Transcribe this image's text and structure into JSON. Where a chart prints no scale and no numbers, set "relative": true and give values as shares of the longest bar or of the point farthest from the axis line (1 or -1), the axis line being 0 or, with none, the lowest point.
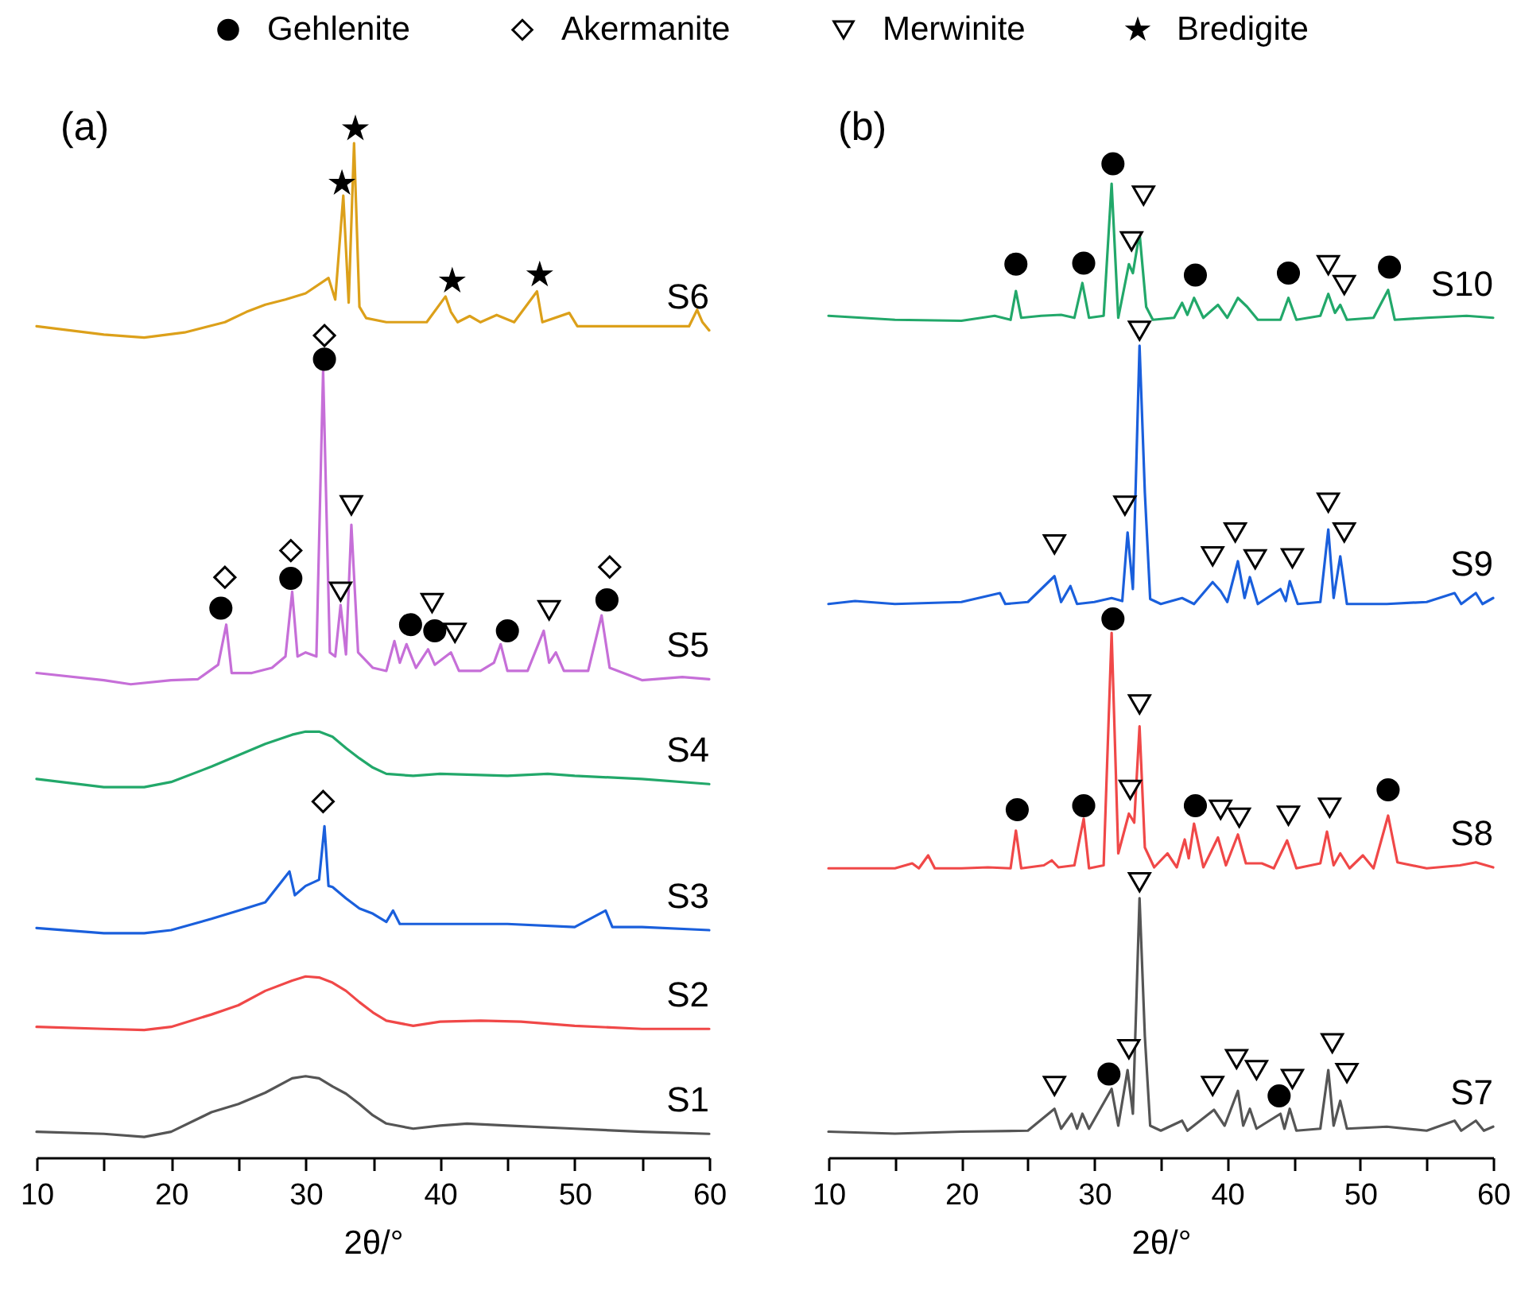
{
  "chart_data": [
    {
      "type": "line",
      "title": "(a)",
      "xlabel": "2θ/°",
      "xlim": [
        10,
        60
      ],
      "xticks": [
        10,
        {
          "value": 15,
          "label": null
        },
        20,
        {
          "value": 25,
          "label": null
        },
        30,
        {
          "value": 35,
          "label": null
        },
        40,
        {
          "value": 45,
          "label": null
        },
        50,
        {
          "value": 55,
          "label": null
        },
        60
      ],
      "relative": true,
      "legend": "top",
      "series": [
        {
          "name": "S1",
          "color": "#555555",
          "x": [
            10,
            15,
            18,
            20,
            23,
            25,
            27,
            29,
            30,
            31,
            32,
            33,
            34,
            35,
            36,
            38,
            40,
            42,
            45,
            50,
            55,
            60
          ],
          "values": [
            0.025,
            0.023,
            0.02,
            0.025,
            0.044,
            0.052,
            0.063,
            0.077,
            0.079,
            0.077,
            0.069,
            0.062,
            0.052,
            0.041,
            0.033,
            0.028,
            0.031,
            0.033,
            0.031,
            0.028,
            0.025,
            0.023
          ]
        },
        {
          "name": "S2",
          "color": "#f04848",
          "x": [
            10,
            15,
            18,
            20,
            23,
            25,
            27,
            29,
            30,
            31,
            32,
            33,
            34,
            35,
            36,
            38,
            40,
            43,
            46,
            50,
            55,
            60
          ],
          "values": [
            0.127,
            0.125,
            0.124,
            0.127,
            0.139,
            0.148,
            0.162,
            0.172,
            0.176,
            0.175,
            0.17,
            0.162,
            0.151,
            0.141,
            0.133,
            0.128,
            0.132,
            0.133,
            0.132,
            0.128,
            0.125,
            0.125
          ]
        },
        {
          "name": "S3",
          "color": "#1a5fdc",
          "x": [
            10,
            15,
            18,
            20,
            23,
            25,
            27,
            28.8,
            29.2,
            30,
            31,
            31.4,
            31.7,
            32,
            33,
            34,
            35,
            36,
            36.5,
            37,
            40,
            45,
            50,
            52.3,
            52.8,
            55,
            60
          ],
          "values": [
            0.223,
            0.218,
            0.218,
            0.221,
            0.232,
            0.24,
            0.248,
            0.278,
            0.255,
            0.264,
            0.27,
            0.322,
            0.264,
            0.263,
            0.252,
            0.242,
            0.237,
            0.229,
            0.24,
            0.227,
            0.227,
            0.227,
            0.224,
            0.24,
            0.224,
            0.224,
            0.221
          ]
        },
        {
          "name": "S4",
          "color": "#22a86a",
          "x": [
            10,
            15,
            18,
            20,
            23,
            25,
            27,
            29,
            30,
            31,
            32,
            33,
            34,
            35,
            36,
            38,
            40,
            45,
            48,
            50,
            55,
            60
          ],
          "values": [
            0.368,
            0.36,
            0.36,
            0.365,
            0.38,
            0.391,
            0.402,
            0.411,
            0.414,
            0.414,
            0.409,
            0.398,
            0.388,
            0.379,
            0.373,
            0.371,
            0.373,
            0.371,
            0.373,
            0.371,
            0.368,
            0.363
          ]
        },
        {
          "name": "S5",
          "color": "#c66fd8",
          "x": [
            10,
            15,
            17,
            20,
            22,
            23.5,
            24.1,
            24.5,
            26,
            27.5,
            28.5,
            29,
            29.4,
            30,
            30.8,
            31.3,
            31.8,
            32.2,
            32.6,
            33,
            33.4,
            33.9,
            35,
            36,
            36.6,
            37,
            37.5,
            38.2,
            39.1,
            39.6,
            40.8,
            41.4,
            43,
            44,
            44.5,
            45,
            46.5,
            47.7,
            48.1,
            48.6,
            49.2,
            51,
            52,
            52.6,
            55,
            58,
            60
          ],
          "values": [
            0.471,
            0.464,
            0.46,
            0.464,
            0.465,
            0.479,
            0.518,
            0.471,
            0.471,
            0.476,
            0.487,
            0.55,
            0.487,
            0.491,
            0.487,
            0.765,
            0.491,
            0.487,
            0.537,
            0.489,
            0.615,
            0.491,
            0.476,
            0.473,
            0.502,
            0.481,
            0.499,
            0.476,
            0.494,
            0.479,
            0.491,
            0.473,
            0.473,
            0.481,
            0.499,
            0.473,
            0.473,
            0.512,
            0.481,
            0.491,
            0.473,
            0.473,
            0.527,
            0.476,
            0.464,
            0.467,
            0.465
          ]
        },
        {
          "name": "S6",
          "color": "#dca01a",
          "x": [
            10,
            15,
            18,
            21,
            24,
            25.6,
            27,
            28.5,
            30,
            31.7,
            32.2,
            32.8,
            33.2,
            33.6,
            34,
            34.5,
            36,
            39,
            40.4,
            40.8,
            41.3,
            42.2,
            43,
            44.2,
            45.5,
            47.2,
            47.6,
            49.6,
            50.2,
            55,
            58.5,
            59.1,
            59.5,
            60
          ],
          "values": [
            0.808,
            0.8,
            0.797,
            0.802,
            0.812,
            0.822,
            0.829,
            0.834,
            0.84,
            0.855,
            0.834,
            0.935,
            0.831,
            0.986,
            0.827,
            0.816,
            0.812,
            0.812,
            0.837,
            0.822,
            0.812,
            0.818,
            0.812,
            0.819,
            0.812,
            0.842,
            0.812,
            0.821,
            0.808,
            0.808,
            0.808,
            0.824,
            0.812,
            0.804
          ]
        },
        {
          "type": "scatter",
          "name": "Gehlenite",
          "color": "#000000",
          "marker": "circle",
          "x": [
            23.7,
            28.9,
            31.4,
            37.8,
            39.6,
            45,
            52.4
          ],
          "values": [
            0.534,
            0.563,
            0.776,
            0.518,
            0.512,
            0.512,
            0.542
          ]
        },
        {
          "type": "scatter",
          "name": "Akermanite",
          "color": "#000000",
          "marker": "diamond",
          "x": [
            31.3,
            24,
            28.9,
            31.4,
            52.6
          ],
          "values": [
            0.346,
            0.564,
            0.59,
            0.799,
            0.574
          ]
        },
        {
          "type": "scatter",
          "name": "Merwinite",
          "color": "#000000",
          "marker": "triangle",
          "x": [
            33.4,
            32.6,
            39.4,
            41.1,
            48.1
          ],
          "values": [
            0.634,
            0.55,
            0.539,
            0.51,
            0.532
          ]
        },
        {
          "type": "scatter",
          "name": "Bredigite",
          "color": "#000000",
          "marker": "star",
          "x": [
            32.7,
            33.7,
            40.9,
            47.4
          ],
          "values": [
            0.947,
            1,
            0.852,
            0.858
          ]
        }
      ]
    },
    {
      "type": "line",
      "title": "(b)",
      "xlabel": "2θ/°",
      "xlim": [
        10,
        60
      ],
      "xticks": [
        10,
        {
          "value": 15,
          "label": null
        },
        20,
        {
          "value": 25,
          "label": null
        },
        30,
        {
          "value": 35,
          "label": null
        },
        40,
        {
          "value": 45,
          "label": null
        },
        50,
        {
          "value": 55,
          "label": null
        },
        60
      ],
      "relative": true,
      "series": [
        {
          "name": "S7",
          "color": "#555555",
          "x": [
            10,
            15,
            20,
            25,
            27,
            27.5,
            28.3,
            28.7,
            29.1,
            29.6,
            31.3,
            31.8,
            32.5,
            32.9,
            33.4,
            33.8,
            34.2,
            35,
            36.6,
            37,
            39,
            39.8,
            40.8,
            41.2,
            41.7,
            42.2,
            44,
            44.3,
            44.7,
            45.2,
            47,
            47.6,
            48,
            48.5,
            49,
            52,
            55,
            57.1,
            57.6,
            58.7,
            59.3,
            60
          ],
          "values": [
            0.026,
            0.024,
            0.026,
            0.027,
            0.049,
            0.029,
            0.044,
            0.029,
            0.044,
            0.029,
            0.069,
            0.032,
            0.088,
            0.044,
            0.261,
            0.122,
            0.032,
            0.027,
            0.037,
            0.027,
            0.048,
            0.032,
            0.067,
            0.032,
            0.049,
            0.029,
            0.044,
            0.029,
            0.049,
            0.027,
            0.029,
            0.088,
            0.032,
            0.057,
            0.029,
            0.031,
            0.027,
            0.037,
            0.027,
            0.037,
            0.027,
            0.031
          ]
        },
        {
          "name": "S8",
          "color": "#f04848",
          "x": [
            10,
            15,
            16.3,
            16.8,
            17.5,
            18,
            20,
            22,
            23.7,
            24.1,
            24.5,
            26.2,
            26.8,
            27.3,
            28.5,
            29.2,
            29.6,
            30.7,
            31.3,
            31.8,
            32.6,
            33,
            33.4,
            33.8,
            34.5,
            35.5,
            36.2,
            36.8,
            37.1,
            37.5,
            38.2,
            39.3,
            39.9,
            40.8,
            41.4,
            42.6,
            43.5,
            44.5,
            45.2,
            47,
            47.5,
            48,
            48.5,
            49.2,
            50.2,
            51,
            52.1,
            52.8,
            55,
            57.5,
            58.7,
            60
          ],
          "values": [
            0.291,
            0.291,
            0.296,
            0.291,
            0.304,
            0.291,
            0.291,
            0.292,
            0.291,
            0.329,
            0.291,
            0.294,
            0.299,
            0.292,
            0.294,
            0.341,
            0.291,
            0.294,
            0.528,
            0.306,
            0.346,
            0.337,
            0.434,
            0.312,
            0.292,
            0.306,
            0.292,
            0.32,
            0.301,
            0.336,
            0.292,
            0.322,
            0.294,
            0.325,
            0.296,
            0.296,
            0.291,
            0.319,
            0.291,
            0.296,
            0.328,
            0.294,
            0.306,
            0.291,
            0.304,
            0.291,
            0.344,
            0.297,
            0.291,
            0.294,
            0.297,
            0.292
          ]
        },
        {
          "name": "S9",
          "color": "#1764e0",
          "x": [
            10,
            12,
            15,
            20,
            22.9,
            23.3,
            25,
            27,
            27.5,
            28.2,
            28.7,
            30,
            31.3,
            32.1,
            32.5,
            32.9,
            33.4,
            33.8,
            34.2,
            35,
            36.6,
            37.5,
            38.9,
            39.5,
            40,
            40.8,
            41.3,
            41.7,
            42.3,
            44,
            44.4,
            44.7,
            45.3,
            47,
            47.6,
            48,
            48.5,
            49,
            52,
            55,
            57.1,
            57.6,
            58.7,
            59.2,
            60
          ],
          "values": [
            0.557,
            0.56,
            0.557,
            0.559,
            0.568,
            0.557,
            0.559,
            0.585,
            0.559,
            0.575,
            0.557,
            0.559,
            0.563,
            0.56,
            0.629,
            0.572,
            0.817,
            0.669,
            0.562,
            0.557,
            0.563,
            0.557,
            0.579,
            0.57,
            0.559,
            0.6,
            0.563,
            0.584,
            0.557,
            0.572,
            0.56,
            0.58,
            0.557,
            0.559,
            0.632,
            0.563,
            0.605,
            0.557,
            0.557,
            0.559,
            0.568,
            0.557,
            0.568,
            0.557,
            0.563
          ]
        },
        {
          "name": "S10",
          "color": "#22ad6e",
          "x": [
            10,
            15,
            20,
            22.5,
            23.7,
            24.1,
            24.5,
            26,
            27.5,
            28.5,
            29.1,
            29.6,
            30.7,
            31.3,
            31.8,
            32.6,
            32.9,
            33.4,
            33.9,
            34.4,
            36,
            36.6,
            37,
            37.5,
            38.2,
            39.3,
            40,
            40.8,
            41.5,
            42.3,
            44,
            44.6,
            45.2,
            47,
            47.6,
            48.1,
            48.5,
            49,
            51,
            52.1,
            52.6,
            55,
            58,
            60
          ],
          "values": [
            0.847,
            0.843,
            0.842,
            0.847,
            0.843,
            0.872,
            0.845,
            0.847,
            0.848,
            0.845,
            0.88,
            0.845,
            0.847,
            0.98,
            0.845,
            0.899,
            0.89,
            0.93,
            0.856,
            0.843,
            0.845,
            0.86,
            0.848,
            0.865,
            0.845,
            0.858,
            0.845,
            0.865,
            0.856,
            0.843,
            0.843,
            0.865,
            0.843,
            0.847,
            0.869,
            0.85,
            0.858,
            0.843,
            0.845,
            0.873,
            0.843,
            0.845,
            0.847,
            0.845
          ]
        },
        {
          "type": "scatter",
          "name": "Gehlenite",
          "color": "#000000",
          "marker": "circle",
          "x": [
            31.1,
            43.9,
            31.4,
            24.2,
            29.2,
            37.6,
            52.1,
            31.4,
            24.1,
            29.2,
            37.6,
            44.6,
            52.2
          ],
          "values": [
            0.084,
            0.062,
            0.542,
            0.35,
            0.354,
            0.354,
            0.37,
            1,
            0.899,
            0.9,
            0.888,
            0.89,
            0.896
          ]
        },
        {
          "type": "scatter",
          "name": "Merwinite",
          "color": "#000000",
          "marker": "triangle",
          "x": [
            27,
            32.6,
            33.4,
            38.9,
            40.7,
            42.2,
            44.9,
            47.9,
            49,
            33.4,
            32.7,
            39.5,
            40.9,
            44.6,
            47.7,
            27,
            32.3,
            33.4,
            38.9,
            40.6,
            42.1,
            44.9,
            47.6,
            48.8,
            33.7,
            32.8,
            47.6,
            48.8
          ],
          "values": [
            0.072,
            0.109,
            0.277,
            0.072,
            0.099,
            0.088,
            0.079,
            0.115,
            0.085,
            0.456,
            0.37,
            0.35,
            0.342,
            0.344,
            0.352,
            0.617,
            0.656,
            0.832,
            0.605,
            0.629,
            0.602,
            0.603,
            0.659,
            0.629,
            0.968,
            0.922,
            0.898,
            0.878
          ]
        }
      ]
    }
  ]
}
